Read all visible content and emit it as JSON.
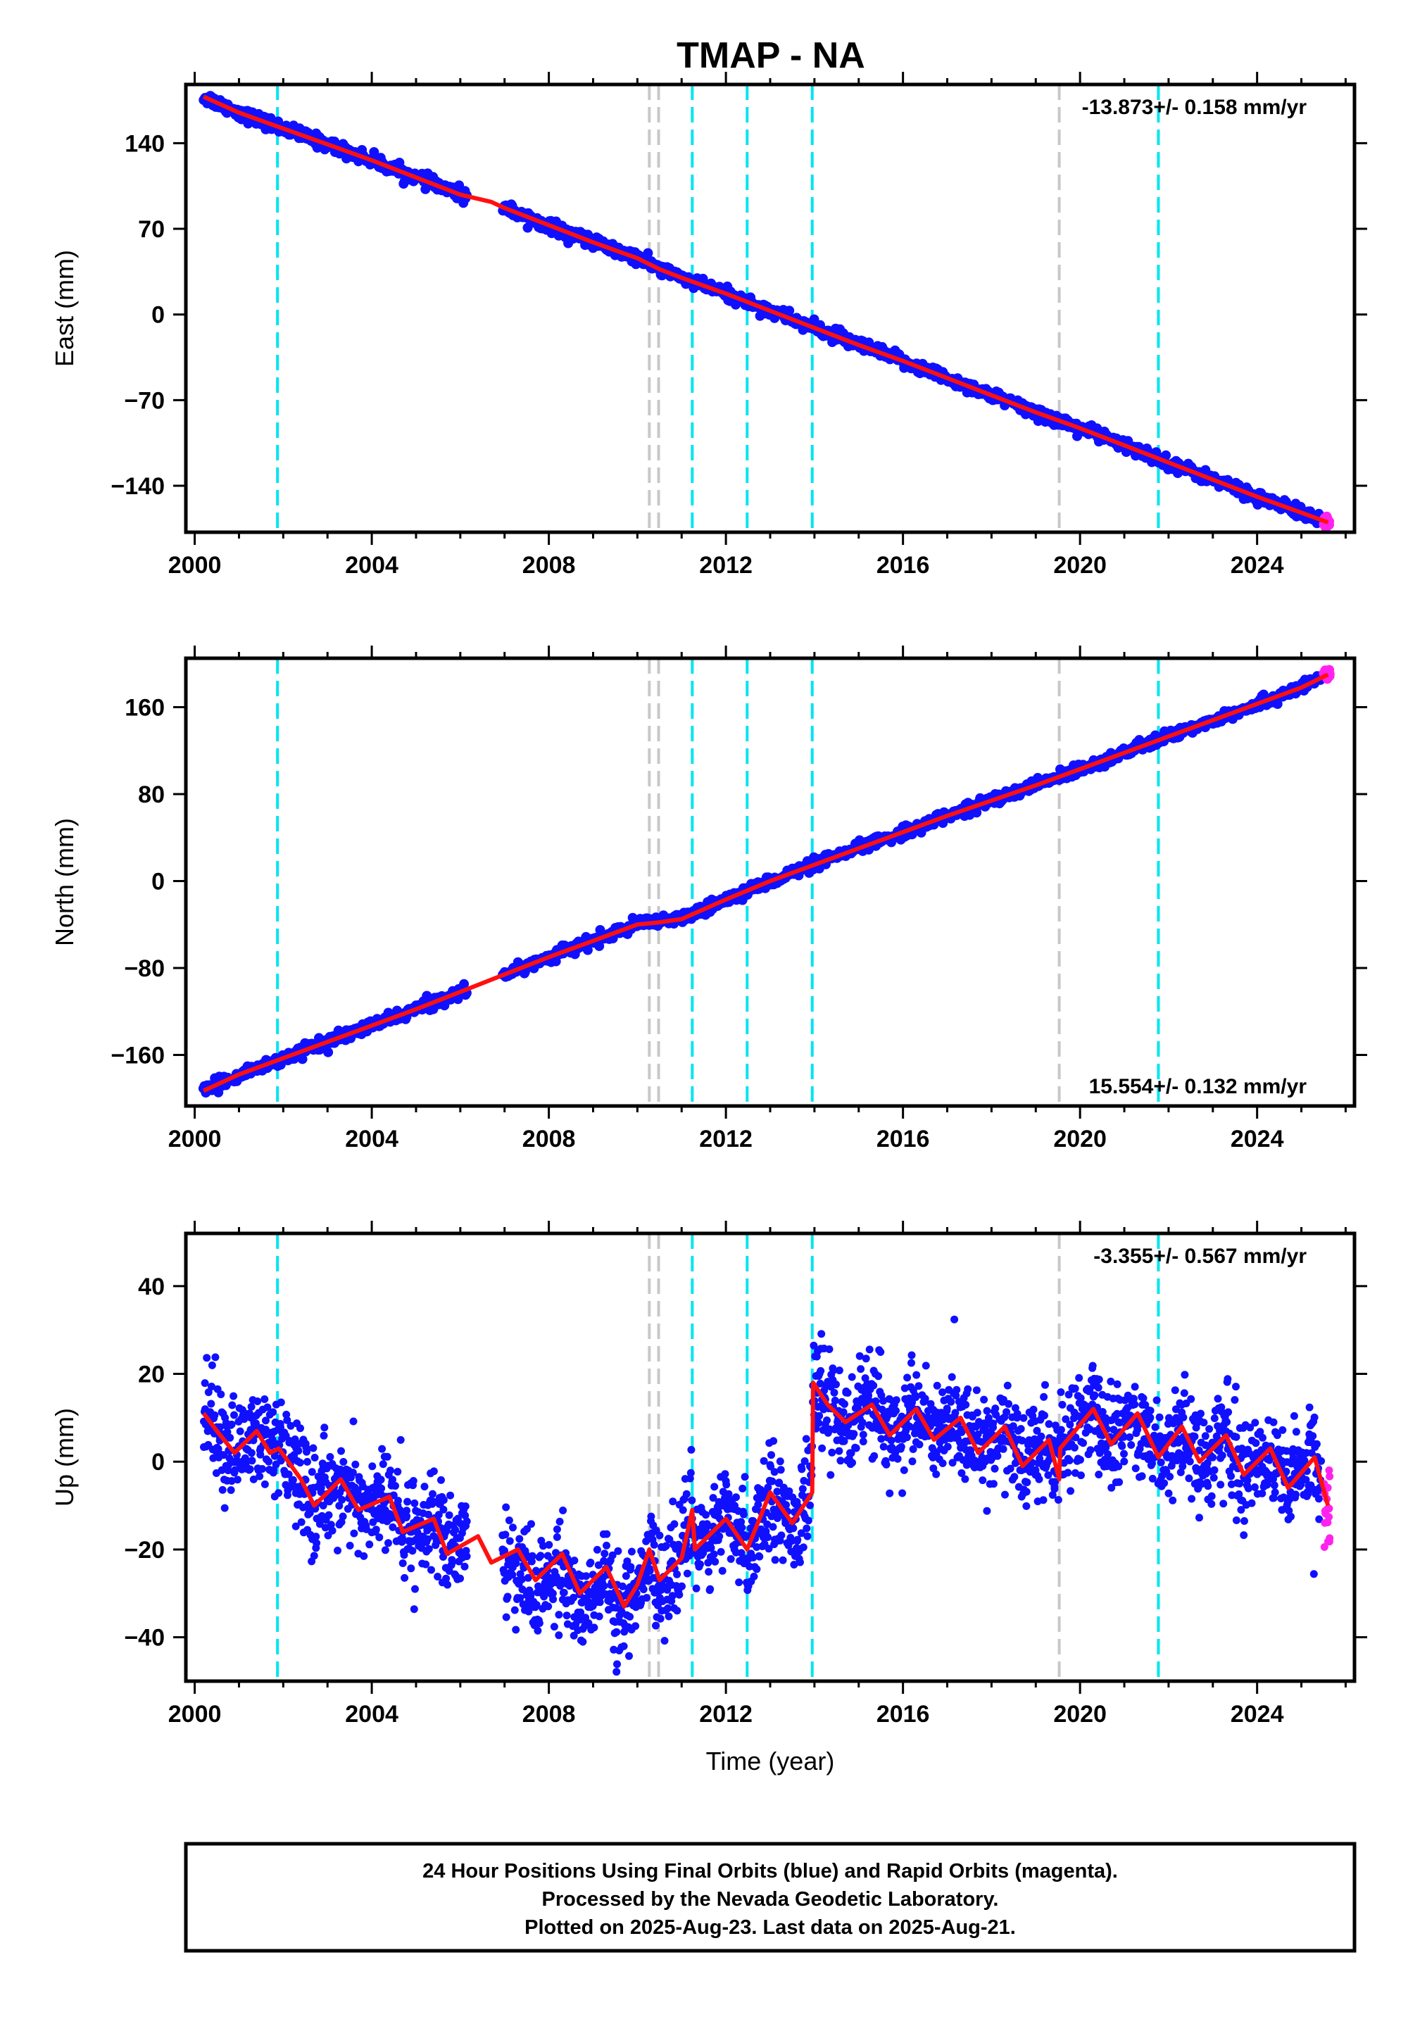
{
  "title": "TMAP - NA",
  "colors": {
    "final_points": "#1010ff",
    "rapid_points": "#ff22ee",
    "model_line": "#ff1010",
    "antenna_event": "#00e5f0",
    "eq_event": "#c8c8c8"
  },
  "event_lines": {
    "antenna": [
      2001.87,
      2011.24,
      2012.48,
      2013.95,
      2021.77
    ],
    "earthquake": [
      2010.27,
      2010.48,
      2019.53
    ]
  },
  "chart_data": [
    {
      "type": "scatter",
      "component": "east",
      "ylabel": "East (mm)",
      "rate_label": "-13.873+/- 0.158 mm/yr",
      "xlim": [
        1999.8,
        2026.2
      ],
      "ylim": [
        -178,
        188
      ],
      "xticks": [
        "2000",
        "2004",
        "2008",
        "2012",
        "2016",
        "2020",
        "2024"
      ],
      "yticks": [
        "140",
        "70",
        "0",
        "−70",
        "−140"
      ],
      "series": [
        {
          "type": "line",
          "x": [
            2000.2,
            2001.0,
            2002.0,
            2003.0,
            2004.0,
            2005.0,
            2006.0,
            2006.7,
            2007.0,
            2008.0,
            2009.0,
            2010.0,
            2010.5,
            2011.0,
            2012.0,
            2013.0,
            2014.0,
            2015.0,
            2016.0,
            2017.0,
            2018.0,
            2019.0,
            2020.0,
            2021.0,
            2022.0,
            2023.0,
            2024.0,
            2025.0,
            2025.6
          ],
          "y": [
            178,
            165,
            152,
            139,
            126,
            112,
            98,
            92,
            87,
            73,
            59,
            46,
            37,
            30,
            17,
            3,
            -11,
            -25,
            -38,
            -52,
            -66,
            -80,
            -93,
            -107,
            -121,
            -135,
            -149,
            -162,
            -170
          ]
        }
      ]
    },
    {
      "type": "scatter",
      "component": "north",
      "ylabel": "North (mm)",
      "rate_label": "15.554+/- 0.132 mm/yr",
      "xlim": [
        1999.8,
        2026.2
      ],
      "ylim": [
        -207,
        205
      ],
      "xticks": [
        "2000",
        "2004",
        "2008",
        "2012",
        "2016",
        "2020",
        "2024"
      ],
      "yticks": [
        "160",
        "80",
        "0",
        "−80",
        "−160"
      ],
      "series": [
        {
          "type": "line",
          "x": [
            2000.2,
            2001.0,
            2002.0,
            2003.0,
            2004.0,
            2005.0,
            2006.0,
            2007.0,
            2008.0,
            2009.0,
            2010.0,
            2010.5,
            2011.0,
            2012.0,
            2013.0,
            2014.0,
            2015.0,
            2016.0,
            2017.0,
            2018.0,
            2019.0,
            2020.0,
            2021.0,
            2022.0,
            2023.0,
            2024.0,
            2025.0,
            2025.6
          ],
          "y": [
            -193,
            -178,
            -163,
            -148,
            -133,
            -118,
            -102,
            -86,
            -70,
            -55,
            -40,
            -38,
            -35,
            -17,
            0,
            15,
            30,
            45,
            60,
            74,
            88,
            103,
            118,
            133,
            148,
            163,
            178,
            190
          ]
        }
      ]
    },
    {
      "type": "scatter",
      "component": "up",
      "ylabel": "Up (mm)",
      "xlabel": "Time (year)",
      "rate_label": "-3.355+/- 0.567 mm/yr",
      "xlim": [
        1999.8,
        2026.2
      ],
      "ylim": [
        -50,
        52
      ],
      "xticks": [
        "2000",
        "2004",
        "2008",
        "2012",
        "2016",
        "2020",
        "2024"
      ],
      "yticks": [
        "40",
        "20",
        "0",
        "−20",
        "−40"
      ],
      "series": [
        {
          "type": "line",
          "x": [
            2000.2,
            2000.5,
            2000.9,
            2001.4,
            2001.7,
            2001.9,
            2002.4,
            2002.7,
            2003.3,
            2003.7,
            2004.4,
            2004.7,
            2005.4,
            2005.7,
            2006.4,
            2006.7,
            2007.3,
            2007.7,
            2008.3,
            2008.7,
            2009.3,
            2009.7,
            2010.0,
            2010.27,
            2010.5,
            2011.0,
            2011.24,
            2011.3,
            2012.0,
            2012.48,
            2013.0,
            2013.5,
            2013.95,
            2013.97,
            2014.3,
            2014.7,
            2015.3,
            2015.7,
            2016.3,
            2016.7,
            2017.3,
            2017.7,
            2018.3,
            2018.7,
            2019.3,
            2019.53,
            2019.55,
            2020.3,
            2020.7,
            2021.3,
            2021.77,
            2022.3,
            2022.7,
            2023.3,
            2023.7,
            2024.3,
            2024.7,
            2025.3,
            2025.6
          ],
          "y": [
            11,
            7,
            2,
            7,
            2,
            3,
            -4,
            -10,
            -4,
            -11,
            -8,
            -16,
            -13,
            -21,
            -17,
            -23,
            -20,
            -27,
            -21,
            -30,
            -24,
            -33,
            -28,
            -20,
            -27,
            -22,
            -11,
            -20,
            -13,
            -20,
            -7,
            -14,
            -7,
            18,
            13,
            9,
            13,
            6,
            12,
            5,
            10,
            2,
            8,
            -1,
            5,
            -4,
            3,
            12,
            4,
            11,
            1,
            8,
            0,
            6,
            -3,
            3,
            -6,
            1,
            -10
          ]
        }
      ]
    }
  ],
  "footer": {
    "line1": "24 Hour Positions Using Final Orbits (blue) and Rapid Orbits (magenta).",
    "line2": "Processed by the Nevada Geodetic Laboratory.",
    "line3": "Plotted on 2025-Aug-23. Last data on 2025-Aug-21."
  }
}
